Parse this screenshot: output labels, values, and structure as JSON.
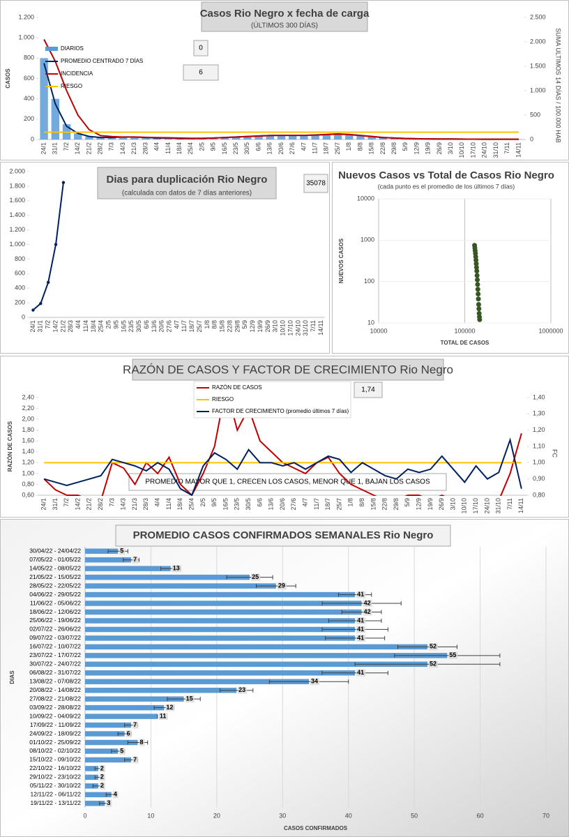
{
  "chart_data": [
    {
      "type": "combo",
      "title": "Casos Rio Negro x fecha de carga",
      "subtitle": "(ÚLTIMOS 300 DÍAS)",
      "y_label": "CASOS",
      "y2_label": "SUMA  ULTIMOS 14 DÍAS / 100.000 HAB",
      "annotations": [
        "0",
        "6"
      ],
      "categories": [
        "24/1",
        "31/1",
        "7/2",
        "14/2",
        "21/2",
        "28/2",
        "7/3",
        "14/3",
        "21/3",
        "28/3",
        "4/4",
        "11/4",
        "18/4",
        "25/4",
        "2/5",
        "9/5",
        "16/5",
        "23/5",
        "30/5",
        "6/6",
        "13/6",
        "20/6",
        "27/6",
        "4/7",
        "11/7",
        "18/7",
        "25/7",
        "1/8",
        "8/8",
        "15/8",
        "22/8",
        "29/8",
        "5/9",
        "12/9",
        "19/9",
        "26/9",
        "3/10",
        "10/10",
        "17/10",
        "24/10",
        "31/10",
        "7/11",
        "14/11"
      ],
      "ylim": [
        0,
        1200
      ],
      "yticks": [
        0,
        200,
        400,
        600,
        800,
        {
          "value": 1000,
          "label": "1.000"
        },
        {
          "value": 1200,
          "label": "1.200"
        }
      ],
      "y2lim": [
        0,
        2500
      ],
      "y2ticks": [
        0,
        500,
        {
          "value": 1000,
          "label": "1.000"
        },
        {
          "value": 1500,
          "label": "1.500"
        },
        {
          "value": 2000,
          "label": "2.000"
        },
        {
          "value": 2500,
          "label": "2.500"
        }
      ],
      "series": [
        {
          "name": "DIARIOS",
          "type": "bar",
          "color": "#5b9bd5",
          "values": [
            800,
            400,
            150,
            60,
            30,
            20,
            15,
            20,
            20,
            15,
            15,
            12,
            10,
            8,
            10,
            15,
            20,
            25,
            30,
            35,
            40,
            40,
            40,
            40,
            45,
            50,
            60,
            45,
            35,
            25,
            18,
            12,
            8,
            6,
            5,
            5,
            4,
            3,
            3,
            2,
            2,
            2,
            2
          ]
        },
        {
          "name": "PROMEDIO CENTRADO 7 DÍAS",
          "type": "line",
          "color": "#002060",
          "values": [
            750,
            350,
            130,
            60,
            30,
            20,
            20,
            25,
            25,
            20,
            15,
            15,
            10,
            10,
            10,
            15,
            20,
            25,
            30,
            35,
            40,
            40,
            40,
            40,
            45,
            50,
            55,
            50,
            40,
            30,
            20,
            15,
            10,
            8,
            6,
            5,
            5,
            4,
            3,
            3,
            3,
            3,
            3
          ]
        },
        {
          "name": "INCIDENCIA",
          "type": "line",
          "color": "#c00000",
          "axis": "y2",
          "values": [
            2050,
            1600,
            1000,
            500,
            200,
            80,
            60,
            50,
            50,
            45,
            40,
            35,
            30,
            25,
            25,
            30,
            40,
            50,
            60,
            70,
            80,
            85,
            85,
            85,
            90,
            100,
            110,
            100,
            80,
            60,
            40,
            30,
            20,
            15,
            12,
            10,
            10,
            8,
            7,
            6,
            6,
            6,
            6
          ]
        },
        {
          "name": "RIESGO",
          "type": "line",
          "color": "#ffc000",
          "axis": "y2",
          "values": [
            150,
            150,
            150,
            150,
            150,
            150,
            150,
            150,
            150,
            150,
            150,
            150,
            150,
            150,
            150,
            150,
            150,
            150,
            150,
            150,
            150,
            150,
            150,
            150,
            150,
            150,
            150,
            150,
            150,
            150,
            150,
            150,
            150,
            150,
            150,
            150,
            150,
            150,
            150,
            150,
            150,
            150,
            150
          ]
        }
      ]
    },
    {
      "type": "line",
      "title": "Dias para duplicación Rio Negro",
      "subtitle": "(calculada con datos de 7 días anteriores)",
      "annotations": [
        "35078"
      ],
      "categories": [
        "24/1",
        "31/1",
        "7/2",
        "14/2",
        "21/2",
        "28/3",
        "4/4",
        "11/4",
        "18/4",
        "25/4",
        "2/5",
        "9/5",
        "16/5",
        "23/5",
        "30/5",
        "6/6",
        "13/6",
        "20/6",
        "27/6",
        "4/7",
        "11/7",
        "18/7",
        "25/7",
        "1/8",
        "8/8",
        "15/8",
        "22/8",
        "29/8",
        "5/9",
        "12/9",
        "19/9",
        "26/9",
        "3/10",
        "10/10",
        "17/10",
        "24/10",
        "31/10",
        "7/11",
        "14/11"
      ],
      "ylim": [
        0,
        2000
      ],
      "yticks": [
        0,
        200,
        400,
        600,
        800,
        {
          "value": 1000,
          "label": "1.000"
        },
        {
          "value": 1200,
          "label": "1.200"
        },
        {
          "value": 1400,
          "label": "1.400"
        },
        {
          "value": 1600,
          "label": "1.600"
        },
        {
          "value": 1800,
          "label": "1.800"
        },
        {
          "value": 2000,
          "label": "2.000"
        }
      ],
      "series": [
        {
          "name": "",
          "color": "#002060",
          "markers": true,
          "values": [
            100,
            190,
            480,
            1000,
            1850,
            null,
            null,
            null,
            null,
            null,
            null,
            null,
            null,
            null,
            null,
            null,
            null,
            null,
            null,
            null,
            null,
            null,
            null,
            null,
            null,
            null,
            null,
            null,
            null,
            null,
            null,
            null,
            null,
            null,
            null,
            null,
            null,
            null,
            null
          ]
        }
      ]
    },
    {
      "type": "scatter",
      "title": "Nuevos Casos vs Total de Casos Rio Negro",
      "subtitle": "(cada punto es el promedio de los últimos 7 días)",
      "x_label": "TOTAL DE CASOS",
      "y_label": "NUEVOS CASOS",
      "xscale": "log",
      "yscale": "log",
      "grid": true,
      "color": "#375623",
      "xlim": [
        10000,
        1000000
      ],
      "xticks": [
        10000,
        100000,
        1000000
      ],
      "ylim": [
        10,
        10000
      ],
      "yticks": [
        10,
        100,
        1000,
        10000
      ],
      "x": [
        130000,
        131000,
        132000,
        133000,
        134000,
        135000,
        136000,
        137000,
        138000,
        139000,
        140000,
        141000,
        142000,
        143000,
        144000,
        145000,
        146000,
        147000,
        148000,
        149000
      ],
      "y": [
        750,
        650,
        560,
        480,
        400,
        330,
        270,
        220,
        180,
        140,
        110,
        85,
        65,
        50,
        38,
        28,
        22,
        17,
        14,
        12
      ]
    },
    {
      "type": "line",
      "title": "RAZÓN DE CASOS Y FACTOR DE CRECIMIENTO Rio Negro",
      "y_label": "RAZÓN DE CASOS",
      "y2_label": "FC",
      "annotations": [
        "1,74",
        "PROMEDIO MAYOR QUE 1, CRECEN LOS CASOS, MENOR QUE 1, BAJAN LOS CASOS"
      ],
      "categories": [
        "24/1",
        "31/1",
        "7/2",
        "14/2",
        "21/2",
        "28/2",
        "7/3",
        "14/3",
        "21/3",
        "28/3",
        "4/4",
        "11/4",
        "18/4",
        "25/4",
        "2/5",
        "9/5",
        "16/5",
        "23/5",
        "30/5",
        "6/6",
        "13/6",
        "20/6",
        "27/6",
        "4/7",
        "11/7",
        "18/7",
        "25/7",
        "1/8",
        "8/8",
        "15/8",
        "22/8",
        "29/8",
        "5/9",
        "12/9",
        "19/9",
        "26/9",
        "3/10",
        "10/10",
        "17/10",
        "24/10",
        "31/10",
        "7/11",
        "14/11"
      ],
      "ylim": [
        0.6,
        2.4
      ],
      "yticks": [
        {
          "value": 0.6,
          "label": "0,60"
        },
        {
          "value": 0.8,
          "label": "0,80"
        },
        {
          "value": 1.0,
          "label": "1,00"
        },
        {
          "value": 1.2,
          "label": "1,20"
        },
        {
          "value": 1.4,
          "label": "1,40"
        },
        {
          "value": 1.6,
          "label": "1,60"
        },
        {
          "value": 1.8,
          "label": "1,80"
        },
        {
          "value": 2.0,
          "label": "2,00"
        },
        {
          "value": 2.2,
          "label": "2,20"
        },
        {
          "value": 2.4,
          "label": "2,40"
        }
      ],
      "y2lim": [
        0.8,
        1.4
      ],
      "y2ticks": [
        {
          "value": 0.8,
          "label": "0,80"
        },
        {
          "value": 0.9,
          "label": "0,90"
        },
        {
          "value": 1.0,
          "label": "1,00"
        },
        {
          "value": 1.1,
          "label": "1,10"
        },
        {
          "value": 1.2,
          "label": "1,20"
        },
        {
          "value": 1.3,
          "label": "1,30"
        },
        {
          "value": 1.4,
          "label": "1,40"
        }
      ],
      "series": [
        {
          "name": "RAZÓN DE CASOS",
          "color": "#c00000",
          "values": [
            0.9,
            0.7,
            0.6,
            0.6,
            0.5,
            0.5,
            1.2,
            1.1,
            0.8,
            1.2,
            1.0,
            1.3,
            0.8,
            0.6,
            1.0,
            1.5,
            2.6,
            1.8,
            2.2,
            1.6,
            1.4,
            1.2,
            1.1,
            1.0,
            1.2,
            1.3,
            1.0,
            0.8,
            0.7,
            0.6,
            0.5,
            0.5,
            0.6,
            0.6,
            0.5,
            0.6,
            0.5,
            0.5,
            0.5,
            0.5,
            0.5,
            1.0,
            1.74
          ]
        },
        {
          "name": "RIESGO",
          "color": "#ffc000",
          "axis": "y2",
          "values": [
            1,
            1,
            1,
            1,
            1,
            1,
            1,
            1,
            1,
            1,
            1,
            1,
            1,
            1,
            1,
            1,
            1,
            1,
            1,
            1,
            1,
            1,
            1,
            1,
            1,
            1,
            1,
            1,
            1,
            1,
            1,
            1,
            1,
            1,
            1,
            1,
            1,
            1,
            1,
            1,
            1,
            1,
            1
          ]
        },
        {
          "name": "FACTOR DE CRECIMIENTO (promedio últimos 7 días)",
          "color": "#002060",
          "axis": "y2",
          "values": [
            0.9,
            0.88,
            0.86,
            0.88,
            0.9,
            0.92,
            1.02,
            1.0,
            0.98,
            0.95,
            1.0,
            0.96,
            0.84,
            0.8,
            0.98,
            1.06,
            1.02,
            0.96,
            1.08,
            1.0,
            1.0,
            0.98,
            1.0,
            0.96,
            1.0,
            1.04,
            1.02,
            0.94,
            1.0,
            0.96,
            0.92,
            0.9,
            0.96,
            0.94,
            0.96,
            1.04,
            0.96,
            0.88,
            0.98,
            0.9,
            0.94,
            1.14,
            0.84
          ]
        }
      ]
    },
    {
      "type": "bar",
      "orientation": "horizontal",
      "title": "PROMEDIO CASOS CONFIRMADOS SEMANALES Rio Negro",
      "x_label": "CASOS CONFIRMADOS",
      "y_label": "DIAS",
      "grid": true,
      "color": "#5b9bd5",
      "categories": [
        "30/04/22 - 24/04/22",
        "07/05/22 - 01/05/22",
        "14/05/22 - 08/05/22",
        "21/05/22 - 15/05/22",
        "28/05/22 - 22/05/22",
        "04/06/22 - 29/05/22",
        "11/06/22 - 05/06/22",
        "18/06/22 - 12/06/22",
        "25/06/22 - 19/06/22",
        "02/07/22 - 26/06/22",
        "09/07/22 - 03/07/22",
        "16/07/22 - 10/07/22",
        "23/07/22 - 17/07/22",
        "30/07/22 - 24/07/22",
        "06/08/22 - 31/07/22",
        "13/08/22 - 07/08/22",
        "20/08/22 - 14/08/22",
        "27/08/22 - 21/08/22",
        "03/09/22 - 28/08/22",
        "10/09/22 - 04/09/22",
        "17/09/22 - 11/09/22",
        "24/09/22 - 18/09/22",
        "01/10/22 - 25/09/22",
        "08/10/22 - 02/10/22",
        "15/10/22 - 09/10/22",
        "22/10/22 - 16/10/22",
        "29/10/22 - 23/10/22",
        "05/11/22 - 30/10/22",
        "12/11/22 - 06/11/22",
        "19/11/22 - 13/11/22"
      ],
      "values": [
        5,
        7,
        13,
        25,
        29,
        41,
        42,
        42,
        41,
        41,
        41,
        52,
        55,
        52,
        41,
        34,
        23,
        15,
        12,
        11,
        7,
        6,
        8,
        5,
        7,
        2,
        2,
        2,
        4,
        3
      ],
      "errors": [
        1.5,
        1.2,
        1.5,
        3.5,
        3,
        2.5,
        6,
        3,
        4,
        5,
        4.5,
        4.5,
        8,
        11,
        5,
        6,
        2.5,
        2.5,
        1.5,
        0,
        1,
        1,
        1.5,
        1,
        1,
        0.5,
        0.5,
        0.8,
        0.8,
        0.8
      ],
      "xlim": [
        0,
        70
      ],
      "xticks": [
        0,
        10,
        20,
        30,
        40,
        50,
        60,
        70
      ]
    }
  ]
}
